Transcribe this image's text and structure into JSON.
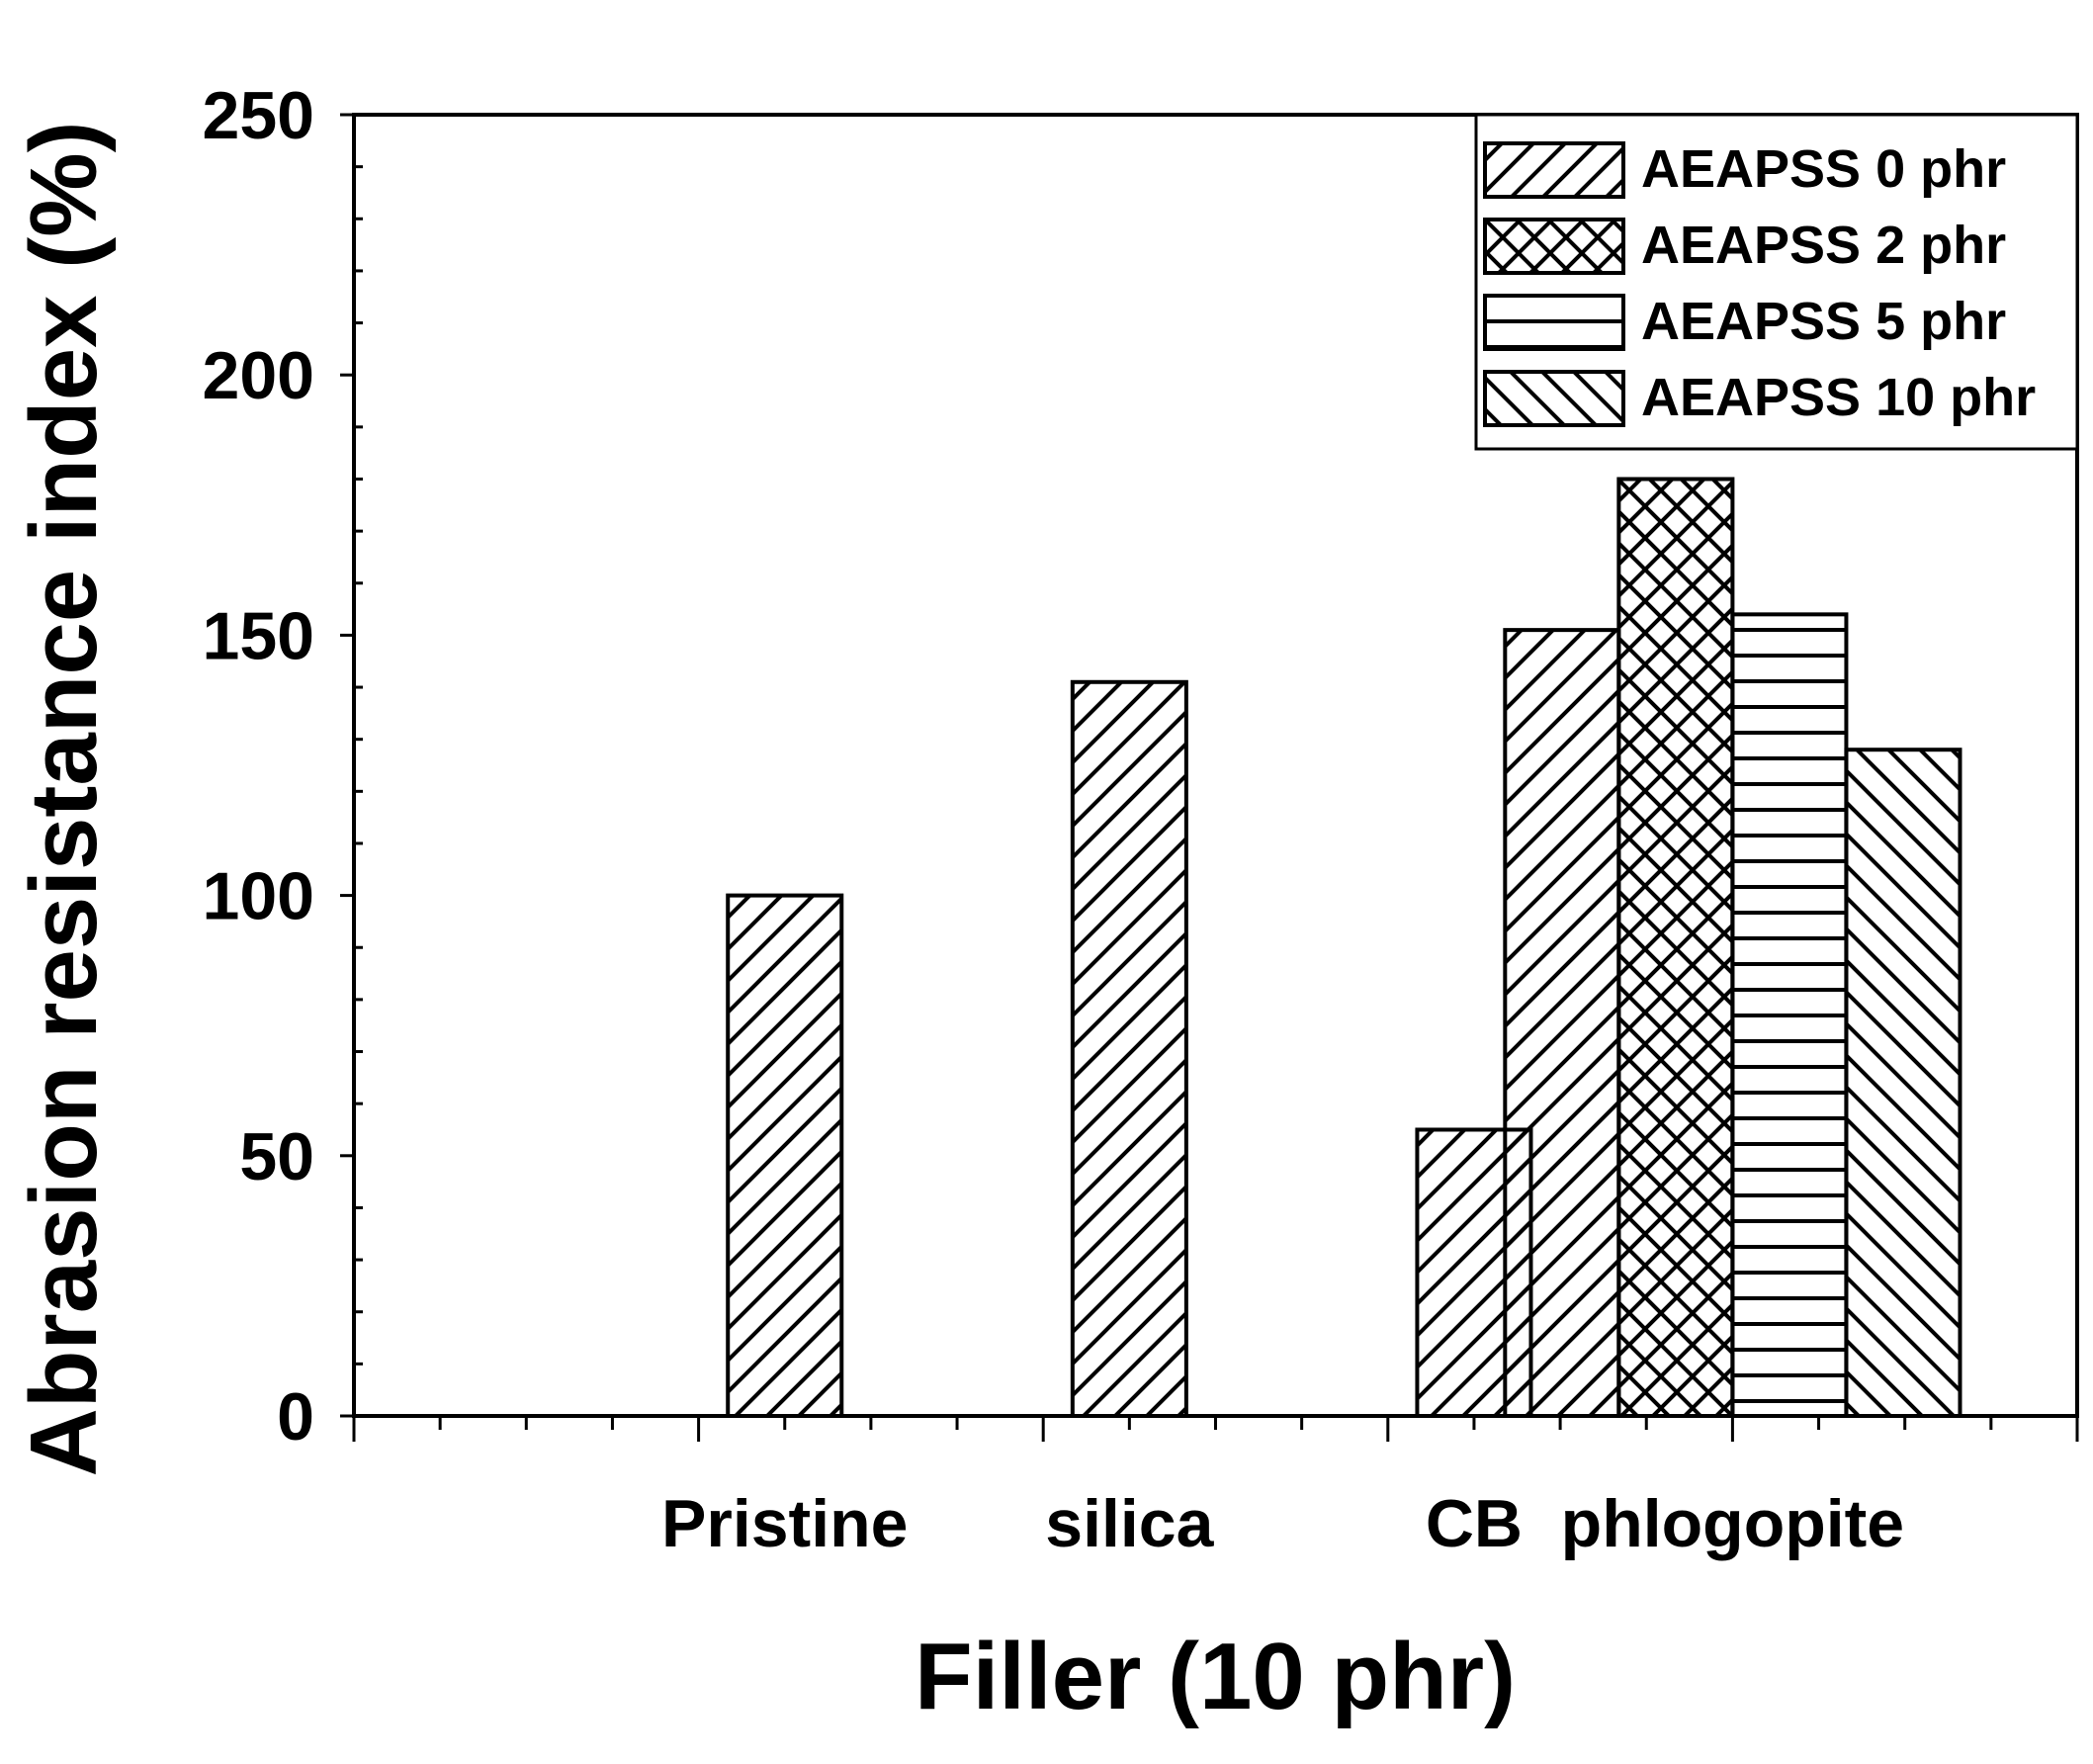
{
  "chart_data": {
    "type": "bar",
    "xlabel": "Filler (10 phr)",
    "ylabel": "Abrasion resistance index (%)",
    "ylim": [
      0,
      250
    ],
    "yticks": [
      0,
      50,
      100,
      150,
      200,
      250
    ],
    "grid": false,
    "legend_position": "top-right",
    "categories": [
      "Pristine",
      "silica",
      "CB",
      "phlogopite"
    ],
    "series": [
      {
        "name": "AEAPSS 0 phr",
        "pattern": "diagonal-up",
        "values": [
          100,
          141,
          55,
          151
        ]
      },
      {
        "name": "AEAPSS 2 phr",
        "pattern": "crosshatch",
        "values": [
          null,
          null,
          null,
          180
        ]
      },
      {
        "name": "AEAPSS 5 phr",
        "pattern": "horizontal",
        "values": [
          null,
          null,
          null,
          154
        ]
      },
      {
        "name": "AEAPSS 10 phr",
        "pattern": "diagonal-down",
        "values": [
          null,
          null,
          null,
          128
        ]
      }
    ]
  },
  "colors": {
    "stroke": "#000000",
    "fill": "#ffffff"
  }
}
